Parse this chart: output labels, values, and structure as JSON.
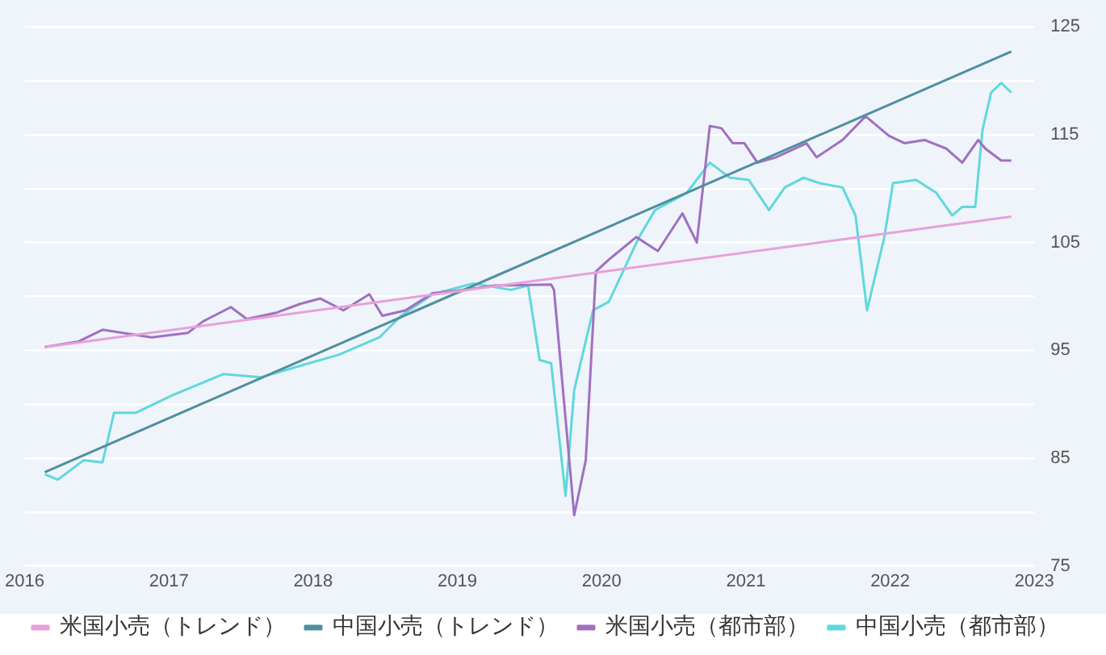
{
  "chart_data": {
    "type": "line",
    "xlim": [
      2016,
      2023
    ],
    "xticks": [
      2016,
      2017,
      2018,
      2019,
      2020,
      2021,
      2022,
      2023
    ],
    "ylim": [
      75,
      125
    ],
    "yticks": [
      75,
      {
        "value": 80,
        "label": null
      },
      85,
      {
        "value": 90,
        "label": null
      },
      95,
      {
        "value": 100,
        "label": null
      },
      105,
      {
        "value": 110,
        "label": null
      },
      115,
      {
        "value": 120,
        "label": null
      },
      125
    ],
    "grid": "y",
    "legend": "bottom left",
    "marker": "none",
    "line_style": "solid",
    "series": [
      {
        "name": "米国小売（トレンド）",
        "color": "#e8a0dc",
        "x": [
          2016.14,
          2022.84
        ],
        "values": [
          95.3,
          107.4
        ]
      },
      {
        "name": "中国小売（トレンド）",
        "color": "#4f8fa0",
        "x": [
          2016.14,
          2022.84
        ],
        "values": [
          83.7,
          122.7
        ]
      },
      {
        "name": "米国小売（都市部）",
        "color": "#a070c0",
        "x": [
          2016.14,
          2016.37,
          2016.54,
          2016.88,
          2017.13,
          2017.24,
          2017.43,
          2017.54,
          2017.75,
          2017.91,
          2018.05,
          2018.21,
          2018.39,
          2018.48,
          2018.64,
          2018.83,
          2019.04,
          2019.26,
          2019.65,
          2019.67,
          2019.81,
          2019.89,
          2019.96,
          2020.05,
          2020.24,
          2020.39,
          2020.56,
          2020.66,
          2020.75,
          2020.83,
          2020.91,
          2020.99,
          2021.08,
          2021.21,
          2021.42,
          2021.49,
          2021.67,
          2021.83,
          2021.99,
          2022.1,
          2022.24,
          2022.39,
          2022.5,
          2022.61,
          2022.66,
          2022.77,
          2022.84
        ],
        "values": [
          95.3,
          95.8,
          96.9,
          96.2,
          96.6,
          97.7,
          99.0,
          97.9,
          98.5,
          99.3,
          99.8,
          98.7,
          100.2,
          98.2,
          98.7,
          100.3,
          100.6,
          101.0,
          101.1,
          100.6,
          79.7,
          84.8,
          102.3,
          103.4,
          105.5,
          104.2,
          107.7,
          105.0,
          115.8,
          115.6,
          114.2,
          114.2,
          112.4,
          112.9,
          114.2,
          112.9,
          114.5,
          116.7,
          114.9,
          114.2,
          114.5,
          113.7,
          112.4,
          114.5,
          113.7,
          112.6,
          112.6
        ]
      },
      {
        "name": "中国小売（都市部）",
        "color": "#5fd8dc",
        "x": [
          2016.14,
          2016.23,
          2016.41,
          2016.54,
          2016.62,
          2016.77,
          2017.02,
          2017.38,
          2017.64,
          2017.92,
          2018.18,
          2018.46,
          2018.61,
          2018.83,
          2019.11,
          2019.37,
          2019.49,
          2019.57,
          2019.65,
          2019.75,
          2019.81,
          2019.94,
          2020.05,
          2020.26,
          2020.37,
          2020.59,
          2020.75,
          2020.89,
          2021.02,
          2021.16,
          2021.27,
          2021.4,
          2021.51,
          2021.67,
          2021.76,
          2021.84,
          2021.96,
          2022.02,
          2022.18,
          2022.32,
          2022.43,
          2022.5,
          2022.59,
          2022.64,
          2022.7,
          2022.77,
          2022.84
        ],
        "values": [
          83.5,
          83.0,
          84.8,
          84.6,
          89.2,
          89.2,
          90.8,
          92.8,
          92.5,
          93.6,
          94.6,
          96.2,
          98.2,
          100.2,
          101.2,
          100.6,
          101.0,
          94.1,
          93.8,
          81.5,
          91.3,
          98.7,
          99.5,
          105.5,
          108.0,
          109.6,
          112.4,
          111.0,
          110.8,
          108.0,
          110.1,
          111.0,
          110.5,
          110.1,
          107.5,
          98.7,
          105.5,
          110.5,
          110.8,
          109.6,
          107.5,
          108.3,
          108.3,
          115.4,
          118.9,
          119.8,
          118.9
        ]
      }
    ]
  }
}
